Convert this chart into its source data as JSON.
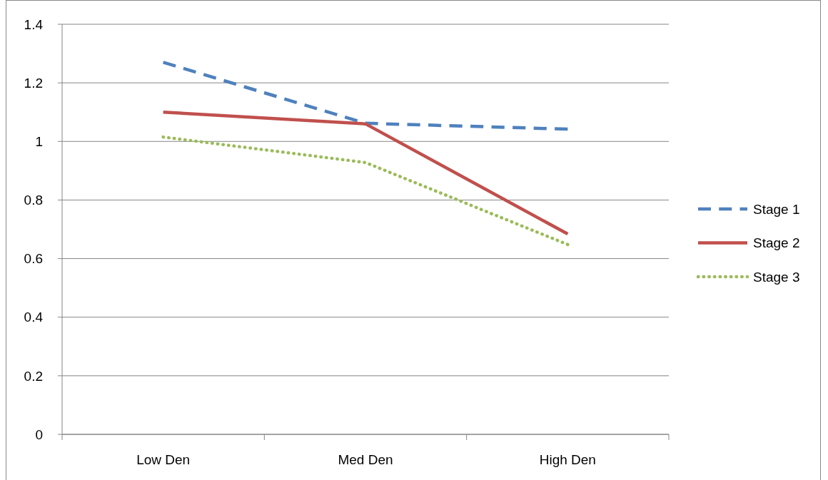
{
  "chart_data": {
    "type": "line",
    "categories": [
      "Low Den",
      "Med Den",
      "High Den"
    ],
    "series": [
      {
        "name": "Stage 1",
        "color": "#4f81bd",
        "line_style": "dashed",
        "values": [
          1.27,
          1.062,
          1.042
        ]
      },
      {
        "name": "Stage 2",
        "color": "#c0504d",
        "line_style": "solid",
        "values": [
          1.1,
          1.06,
          0.684
        ]
      },
      {
        "name": "Stage 3",
        "color": "#9bbb59",
        "line_style": "dotted",
        "values": [
          1.015,
          0.928,
          0.648
        ]
      }
    ],
    "ylim": [
      0,
      1.4
    ],
    "yticks": [
      0,
      0.2,
      0.4,
      0.6,
      0.8,
      1,
      1.2,
      1.4
    ],
    "grid": "y",
    "legend": "right",
    "marker": "none"
  }
}
